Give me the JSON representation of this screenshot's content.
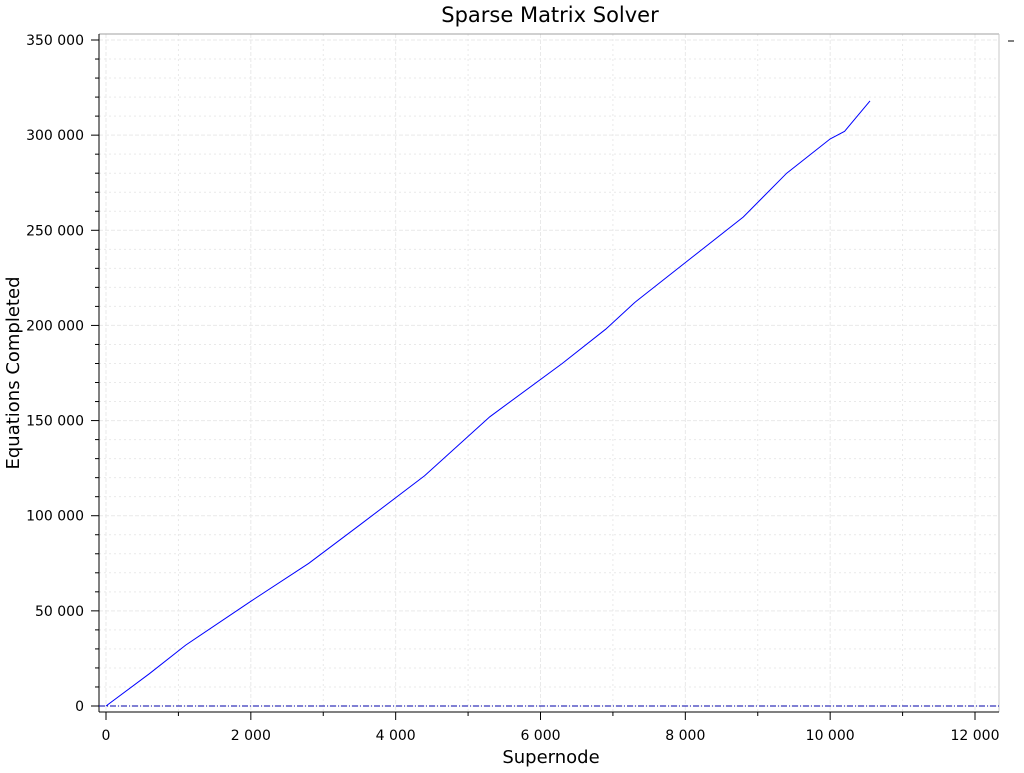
{
  "colors": {
    "background": "#ffffff",
    "axis": "#000000",
    "grid": "#e9e9e9",
    "series": "#0000ff",
    "baseline": "#0000aa"
  },
  "chart_data": {
    "type": "line",
    "title": "Sparse Matrix Solver",
    "xlabel": "Supernode",
    "ylabel": "Equations Completed",
    "xlim": [
      -100,
      12300
    ],
    "ylim": [
      0,
      352000
    ],
    "xticks": [
      0,
      2000,
      4000,
      6000,
      8000,
      10000,
      12000
    ],
    "xtick_labels": [
      "0",
      "2 000",
      "4 000",
      "6 000",
      "8 000",
      "10 000",
      "12 000"
    ],
    "yticks": [
      0,
      50000,
      100000,
      150000,
      200000,
      250000,
      300000,
      350000
    ],
    "ytick_labels": [
      "0",
      "50 000",
      "100 000",
      "150 000",
      "200 000",
      "250 000",
      "300 000",
      "350 000"
    ],
    "grid": true,
    "baseline_y": 0,
    "legend": "none",
    "series": [
      {
        "x": [
          0,
          600,
          1100,
          2000,
          2800,
          3500,
          4400,
          5300,
          6300,
          6900,
          7300,
          8100,
          8800,
          9400,
          10000,
          10200,
          10550
        ],
        "y": [
          0,
          17000,
          32000,
          55000,
          75000,
          95000,
          121000,
          152000,
          180000,
          198000,
          212000,
          236000,
          257000,
          280000,
          298000,
          302000,
          318000
        ]
      }
    ]
  }
}
